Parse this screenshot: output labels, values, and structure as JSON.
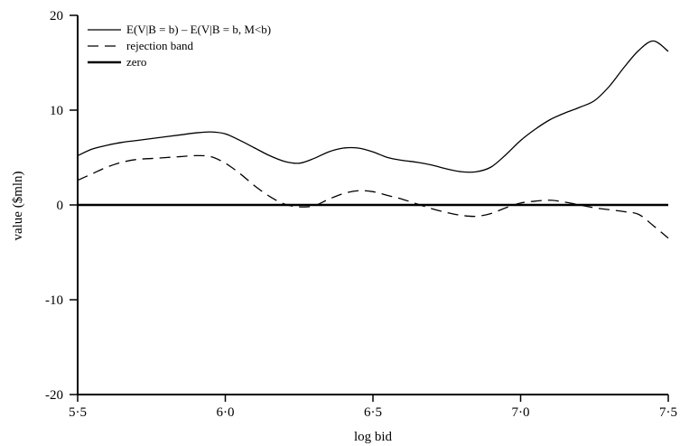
{
  "chart_data": {
    "type": "line",
    "xlabel": "log bid",
    "ylabel": "value ($mln)",
    "xlim": [
      5.5,
      7.5
    ],
    "ylim": [
      -20,
      20
    ],
    "x_ticks": [
      {
        "value": 5.5,
        "label": "5·5"
      },
      {
        "value": 6.0,
        "label": "6·0"
      },
      {
        "value": 6.5,
        "label": "6·5"
      },
      {
        "value": 7.0,
        "label": "7·0"
      },
      {
        "value": 7.5,
        "label": "7·5"
      }
    ],
    "y_ticks": [
      {
        "value": 20,
        "label": "20"
      },
      {
        "value": 10,
        "label": "10"
      },
      {
        "value": 0,
        "label": "0"
      },
      {
        "value": -10,
        "label": "-10"
      },
      {
        "value": -20,
        "label": "-20"
      }
    ],
    "grid": false,
    "legend_position": "top-left",
    "series": [
      {
        "name": "E(V|B = b) – E(V|B = b, M<b)",
        "style": "solid",
        "x": [
          5.5,
          5.55,
          5.6,
          5.65,
          5.7,
          5.75,
          5.8,
          5.85,
          5.9,
          5.95,
          6.0,
          6.05,
          6.1,
          6.15,
          6.2,
          6.25,
          6.3,
          6.35,
          6.4,
          6.45,
          6.5,
          6.55,
          6.6,
          6.65,
          6.7,
          6.75,
          6.8,
          6.85,
          6.9,
          6.95,
          7.0,
          7.05,
          7.1,
          7.15,
          7.2,
          7.25,
          7.3,
          7.35,
          7.4,
          7.45,
          7.5
        ],
        "values": [
          5.2,
          5.9,
          6.3,
          6.6,
          6.8,
          7.0,
          7.2,
          7.4,
          7.6,
          7.7,
          7.5,
          6.8,
          6.0,
          5.2,
          4.6,
          4.4,
          4.9,
          5.6,
          6.0,
          6.0,
          5.6,
          5.0,
          4.7,
          4.5,
          4.2,
          3.8,
          3.5,
          3.5,
          4.0,
          5.3,
          6.8,
          8.0,
          9.0,
          9.7,
          10.3,
          11.0,
          12.5,
          14.5,
          16.3,
          17.3,
          16.2
        ]
      },
      {
        "name": "rejection band",
        "style": "dashed",
        "x": [
          5.5,
          5.55,
          5.6,
          5.65,
          5.7,
          5.75,
          5.8,
          5.85,
          5.9,
          5.95,
          6.0,
          6.05,
          6.1,
          6.15,
          6.2,
          6.25,
          6.3,
          6.35,
          6.4,
          6.45,
          6.5,
          6.55,
          6.6,
          6.65,
          6.7,
          6.75,
          6.8,
          6.85,
          6.9,
          6.95,
          7.0,
          7.05,
          7.1,
          7.15,
          7.2,
          7.25,
          7.3,
          7.35,
          7.4,
          7.45,
          7.5
        ],
        "values": [
          2.6,
          3.3,
          4.0,
          4.5,
          4.8,
          4.9,
          5.0,
          5.1,
          5.2,
          5.1,
          4.4,
          3.3,
          2.0,
          0.9,
          0.1,
          -0.2,
          -0.1,
          0.6,
          1.2,
          1.5,
          1.4,
          1.0,
          0.6,
          0.1,
          -0.4,
          -0.8,
          -1.1,
          -1.2,
          -0.9,
          -0.3,
          0.2,
          0.4,
          0.5,
          0.3,
          0.0,
          -0.3,
          -0.5,
          -0.7,
          -1.0,
          -2.2,
          -3.5
        ]
      },
      {
        "name": "zero",
        "style": "thick",
        "x": [
          5.5,
          7.5
        ],
        "values": [
          0,
          0
        ]
      }
    ]
  }
}
